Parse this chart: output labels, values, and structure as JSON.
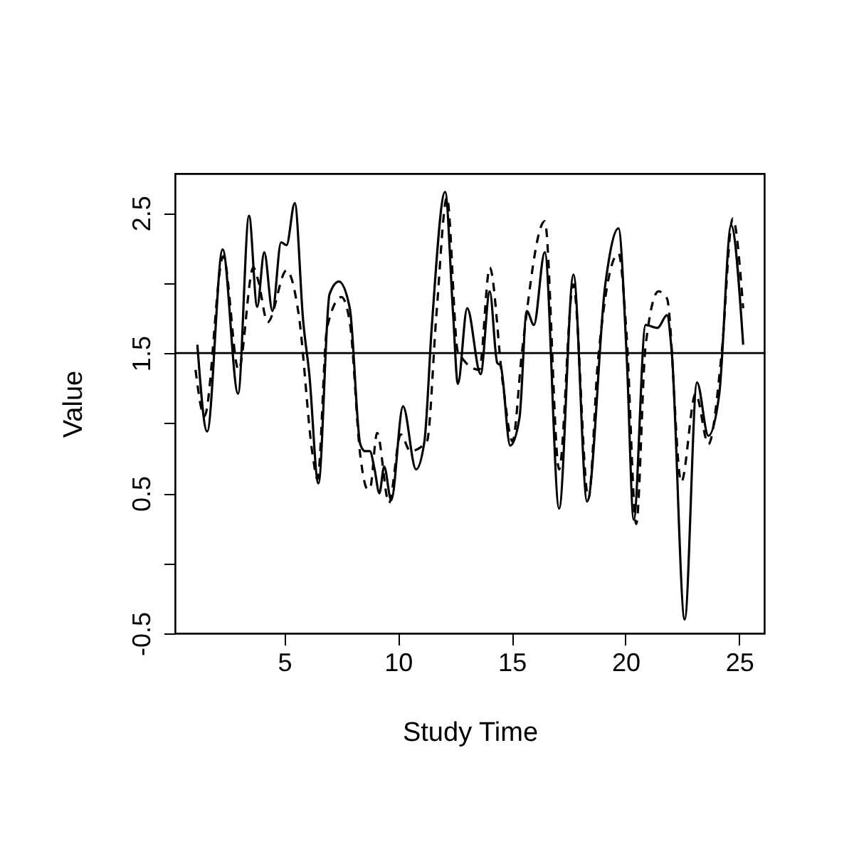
{
  "chart_data": {
    "type": "line",
    "xlabel": "Study Time",
    "ylabel": "Value",
    "xlim": [
      0.2,
      26.1
    ],
    "ylim": [
      -0.5,
      2.78
    ],
    "xticks": [
      5,
      10,
      15,
      20,
      25
    ],
    "yticks": [
      -0.5,
      {
        "value": 0,
        "label": null
      },
      0.5,
      {
        "value": 1,
        "label": null
      },
      1.5,
      {
        "value": 2,
        "label": null
      },
      2.5
    ],
    "grid": false,
    "marker": "none",
    "ref_lines": [
      {
        "axis": "y",
        "value": 1.5,
        "color": "#000000"
      }
    ],
    "series": [
      {
        "color": "#000000",
        "line_style": "solid",
        "x": [
          1.18,
          1.61,
          2.29,
          2.97,
          3.45,
          3.81,
          4.12,
          4.48,
          4.86,
          5.1,
          5.46,
          5.83,
          6.1,
          6.5,
          6.99,
          7.4,
          7.88,
          8.34,
          8.55,
          8.76,
          8.97,
          9.18,
          9.39,
          9.7,
          10.22,
          10.79,
          11.16,
          11.48,
          12.07,
          12.42,
          12.63,
          13.04,
          13.63,
          14.03,
          14.36,
          14.51,
          14.93,
          15.34,
          15.66,
          15.97,
          16.45,
          17.08,
          17.71,
          18.31,
          19.11,
          19.69,
          20.05,
          20.36,
          20.88,
          21.41,
          21.82,
          22.03,
          22.6,
          23.14,
          23.64,
          24.12,
          24.64,
          25.17
        ],
        "values": [
          1.56,
          0.94,
          2.24,
          1.21,
          2.48,
          1.83,
          2.22,
          1.8,
          2.29,
          2.27,
          2.57,
          1.73,
          1.35,
          0.57,
          1.92,
          2.01,
          1.82,
          0.85,
          0.8,
          0.8,
          0.67,
          0.5,
          0.69,
          0.45,
          1.12,
          0.67,
          0.87,
          1.68,
          2.65,
          1.78,
          1.28,
          1.82,
          1.35,
          1.94,
          1.43,
          1.41,
          0.84,
          1.04,
          1.8,
          1.7,
          2.22,
          0.39,
          2.06,
          0.44,
          1.99,
          2.39,
          1.48,
          0.31,
          1.7,
          1.68,
          1.77,
          1.51,
          -0.4,
          1.29,
          0.91,
          1.21,
          2.41,
          1.56
        ]
      },
      {
        "color": "#000000",
        "line_style": "dashed",
        "x": [
          1.1,
          1.49,
          2.32,
          2.99,
          3.64,
          3.85,
          4.27,
          5.1,
          5.63,
          6.25,
          6.46,
          6.88,
          7.51,
          7.88,
          8.34,
          8.66,
          8.76,
          9.08,
          9.6,
          10.12,
          10.54,
          11.27,
          11.69,
          12.15,
          12.63,
          13.57,
          14.03,
          14.61,
          15.03,
          15.45,
          16.45,
          17.08,
          17.7,
          18.37,
          18.79,
          19.69,
          20.05,
          20.47,
          20.88,
          21.45,
          21.82,
          22.45,
          23.08,
          23.64,
          24.23,
          24.71,
          25.17
        ],
        "values": [
          1.38,
          1.05,
          2.19,
          1.38,
          2.11,
          2.02,
          1.72,
          2.09,
          1.78,
          0.77,
          0.6,
          1.68,
          1.9,
          1.72,
          0.77,
          0.53,
          0.53,
          0.93,
          0.43,
          0.92,
          0.8,
          0.87,
          1.78,
          2.61,
          1.51,
          1.38,
          2.11,
          1.28,
          0.87,
          1.51,
          2.44,
          0.67,
          1.99,
          0.46,
          1.45,
          2.21,
          1.62,
          0.28,
          1.55,
          1.94,
          1.89,
          0.58,
          1.21,
          0.85,
          1.51,
          2.46,
          1.82
        ]
      }
    ]
  }
}
